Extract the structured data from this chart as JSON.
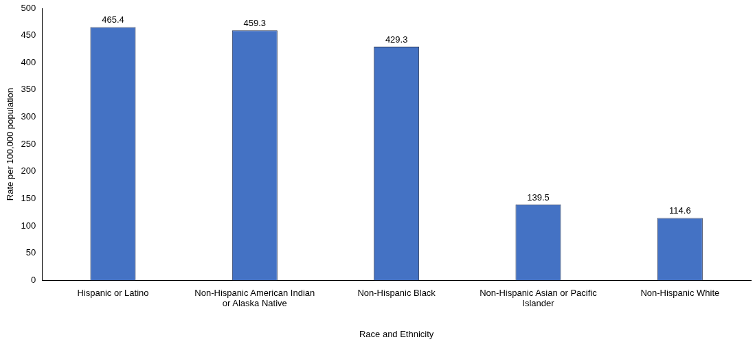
{
  "chart_data": {
    "type": "bar",
    "xlabel": "Race and Ethnicity",
    "ylabel": "Rate per 100,000 population",
    "categories": [
      "Hispanic or Latino",
      "Non-Hispanic American Indian or Alaska Native",
      "Non-Hispanic Black",
      "Non-Hispanic Asian or Pacific Islander",
      "Non-Hispanic White"
    ],
    "values": [
      465.4,
      459.3,
      429.3,
      139.5,
      114.6
    ],
    "color": "#4472c4",
    "ylim": [
      0,
      500
    ],
    "yticks": [
      0,
      50,
      100,
      150,
      200,
      250,
      300,
      350,
      400,
      450,
      500
    ],
    "grid": false,
    "legend": false,
    "data_labels": true
  }
}
